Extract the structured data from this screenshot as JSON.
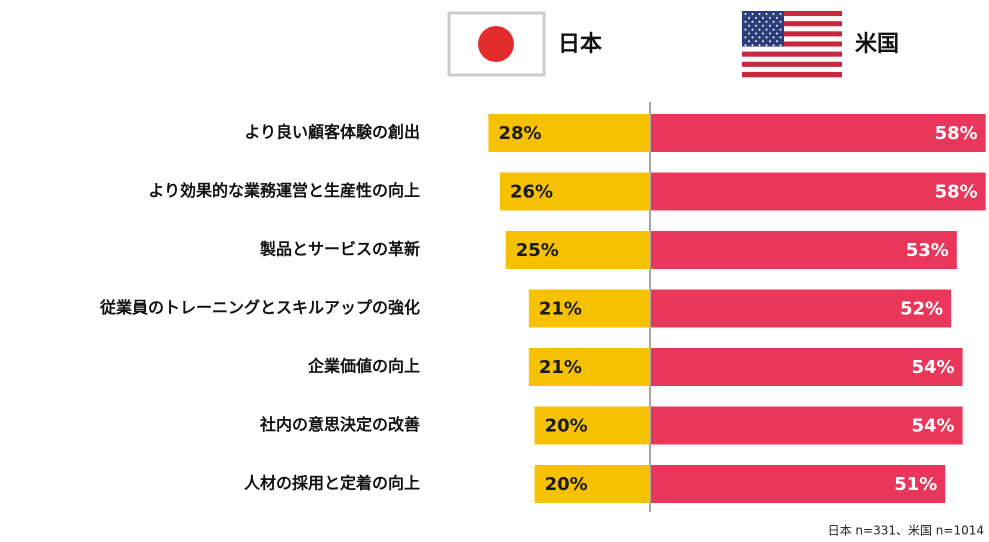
{
  "chart_data": {
    "type": "bar",
    "orientation": "horizontal",
    "diverging": true,
    "categories": [
      "より良い顧客体験の創出",
      "より効果的な業務運営と生産性の向上",
      "製品とサービスの革新",
      "従業員のトレーニングとスキルアップの強化",
      "企業価値の向上",
      "社内の意思決定の改善",
      "人材の採用と定着の向上"
    ],
    "series": [
      {
        "name": "日本",
        "color": "#f6c100",
        "values": [
          28,
          26,
          25,
          21,
          21,
          20,
          20
        ],
        "value_labels": [
          "28%",
          "26%",
          "25%",
          "21%",
          "21%",
          "20%",
          "20%"
        ]
      },
      {
        "name": "米国",
        "color": "#e8375a",
        "values": [
          58,
          58,
          53,
          52,
          54,
          54,
          51
        ],
        "value_labels": [
          "58%",
          "58%",
          "53%",
          "52%",
          "54%",
          "54%",
          "51%"
        ]
      }
    ],
    "note": "日本 n=331、米国 n=1014"
  }
}
